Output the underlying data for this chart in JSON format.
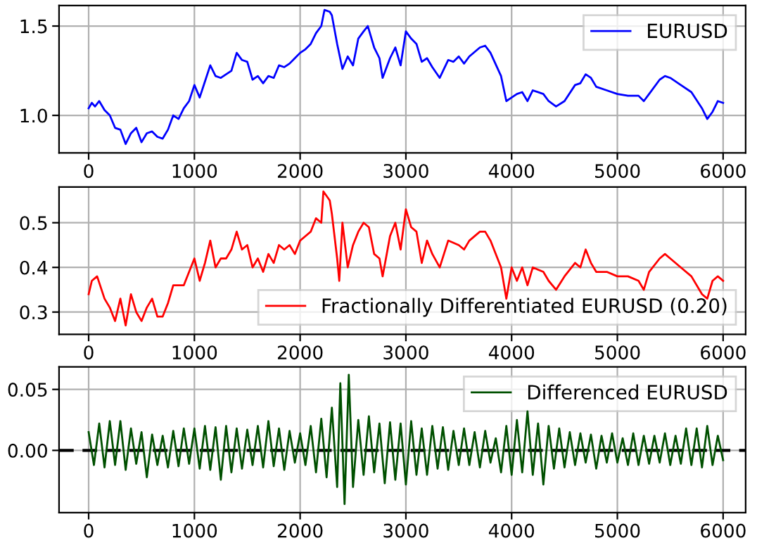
{
  "chart_data": [
    {
      "type": "line",
      "xlim": [
        -280,
        6213
      ],
      "xticks": [
        0,
        1000,
        2000,
        3000,
        4000,
        5000,
        6000
      ],
      "ylim": [
        0.79,
        1.615
      ],
      "yticks": [
        {
          "value": 1.0,
          "label": "1.0"
        },
        {
          "value": 1.5,
          "label": "1.5"
        }
      ],
      "grid": true,
      "legend": "top right",
      "series": [
        {
          "name": "EURUSD",
          "color": "#0000ff",
          "x": [
            0,
            30,
            60,
            100,
            150,
            200,
            250,
            300,
            350,
            400,
            450,
            500,
            550,
            600,
            650,
            700,
            750,
            800,
            850,
            900,
            950,
            1000,
            1050,
            1100,
            1150,
            1200,
            1250,
            1300,
            1350,
            1400,
            1450,
            1500,
            1550,
            1600,
            1650,
            1700,
            1750,
            1800,
            1850,
            1900,
            1950,
            2000,
            2050,
            2100,
            2150,
            2200,
            2230,
            2280,
            2300,
            2350,
            2400,
            2450,
            2500,
            2550,
            2600,
            2640,
            2700,
            2750,
            2780,
            2850,
            2900,
            2950,
            3000,
            3050,
            3100,
            3150,
            3200,
            3250,
            3320,
            3400,
            3450,
            3500,
            3550,
            3600,
            3700,
            3750,
            3800,
            3900,
            3950,
            4000,
            4050,
            4100,
            4150,
            4200,
            4300,
            4350,
            4420,
            4500,
            4600,
            4650,
            4700,
            4750,
            4800,
            4900,
            5000,
            5100,
            5200,
            5250,
            5300,
            5400,
            5450,
            5500,
            5600,
            5700,
            5800,
            5850,
            5900,
            5950,
            6000
          ],
          "values": [
            1.04,
            1.07,
            1.05,
            1.08,
            1.03,
            1.0,
            0.93,
            0.92,
            0.84,
            0.9,
            0.93,
            0.85,
            0.9,
            0.91,
            0.88,
            0.87,
            0.92,
            1.0,
            0.98,
            1.04,
            1.08,
            1.17,
            1.1,
            1.19,
            1.28,
            1.22,
            1.21,
            1.23,
            1.25,
            1.35,
            1.31,
            1.3,
            1.2,
            1.22,
            1.18,
            1.22,
            1.21,
            1.28,
            1.27,
            1.29,
            1.32,
            1.35,
            1.37,
            1.4,
            1.46,
            1.5,
            1.59,
            1.58,
            1.56,
            1.4,
            1.26,
            1.33,
            1.28,
            1.43,
            1.47,
            1.5,
            1.38,
            1.32,
            1.21,
            1.32,
            1.38,
            1.28,
            1.47,
            1.43,
            1.4,
            1.3,
            1.32,
            1.27,
            1.21,
            1.31,
            1.3,
            1.33,
            1.29,
            1.33,
            1.38,
            1.39,
            1.35,
            1.22,
            1.08,
            1.1,
            1.12,
            1.13,
            1.08,
            1.14,
            1.12,
            1.08,
            1.05,
            1.08,
            1.17,
            1.18,
            1.23,
            1.21,
            1.16,
            1.14,
            1.12,
            1.11,
            1.11,
            1.08,
            1.12,
            1.2,
            1.22,
            1.21,
            1.17,
            1.13,
            1.04,
            0.98,
            1.02,
            1.08,
            1.07
          ]
        }
      ]
    },
    {
      "type": "line",
      "xlim": [
        -280,
        6213
      ],
      "xticks": [
        0,
        1000,
        2000,
        3000,
        4000,
        5000,
        6000
      ],
      "ylim": [
        0.25,
        0.58
      ],
      "yticks": [
        {
          "value": 0.3,
          "label": "0.3"
        },
        {
          "value": 0.4,
          "label": "0.4"
        },
        {
          "value": 0.5,
          "label": "0.5"
        }
      ],
      "grid": true,
      "legend": "bottom right",
      "series": [
        {
          "name": "Fractionally Differentiated EURUSD (0.20)",
          "color": "#ff0000",
          "x": [
            0,
            30,
            80,
            150,
            200,
            250,
            300,
            350,
            400,
            450,
            500,
            550,
            600,
            650,
            700,
            750,
            800,
            900,
            950,
            1000,
            1050,
            1100,
            1150,
            1200,
            1250,
            1300,
            1350,
            1400,
            1450,
            1500,
            1550,
            1600,
            1650,
            1700,
            1750,
            1800,
            1850,
            1900,
            1950,
            2000,
            2050,
            2100,
            2150,
            2200,
            2220,
            2280,
            2300,
            2350,
            2370,
            2400,
            2450,
            2500,
            2550,
            2600,
            2650,
            2700,
            2750,
            2780,
            2850,
            2900,
            2950,
            3000,
            3050,
            3100,
            3150,
            3200,
            3250,
            3320,
            3400,
            3500,
            3550,
            3600,
            3700,
            3750,
            3800,
            3900,
            3950,
            4000,
            4050,
            4100,
            4150,
            4200,
            4300,
            4350,
            4420,
            4500,
            4600,
            4650,
            4700,
            4750,
            4800,
            4900,
            5000,
            5100,
            5200,
            5250,
            5300,
            5400,
            5450,
            5500,
            5600,
            5700,
            5800,
            5850,
            5900,
            5950,
            6000
          ],
          "values": [
            0.34,
            0.37,
            0.38,
            0.33,
            0.31,
            0.28,
            0.33,
            0.27,
            0.34,
            0.3,
            0.28,
            0.31,
            0.33,
            0.29,
            0.29,
            0.32,
            0.36,
            0.36,
            0.39,
            0.42,
            0.37,
            0.41,
            0.46,
            0.4,
            0.42,
            0.42,
            0.44,
            0.48,
            0.44,
            0.45,
            0.4,
            0.42,
            0.39,
            0.43,
            0.41,
            0.45,
            0.44,
            0.45,
            0.43,
            0.46,
            0.47,
            0.48,
            0.51,
            0.5,
            0.57,
            0.55,
            0.52,
            0.42,
            0.37,
            0.5,
            0.4,
            0.45,
            0.48,
            0.5,
            0.49,
            0.43,
            0.42,
            0.38,
            0.47,
            0.5,
            0.44,
            0.53,
            0.49,
            0.48,
            0.41,
            0.46,
            0.43,
            0.4,
            0.46,
            0.45,
            0.44,
            0.46,
            0.48,
            0.48,
            0.46,
            0.4,
            0.33,
            0.4,
            0.37,
            0.4,
            0.36,
            0.4,
            0.39,
            0.37,
            0.35,
            0.38,
            0.41,
            0.4,
            0.44,
            0.41,
            0.39,
            0.39,
            0.38,
            0.38,
            0.37,
            0.35,
            0.39,
            0.42,
            0.43,
            0.42,
            0.4,
            0.38,
            0.34,
            0.33,
            0.37,
            0.38,
            0.37
          ]
        }
      ]
    },
    {
      "type": "line",
      "xlim": [
        -280,
        6213
      ],
      "xticks": [
        0,
        1000,
        2000,
        3000,
        4000,
        5000,
        6000
      ],
      "ylim": [
        -0.051,
        0.0685
      ],
      "yticks": [
        {
          "value": 0.0,
          "label": "0.00"
        },
        {
          "value": 0.05,
          "label": "0.05"
        }
      ],
      "grid": true,
      "legend": "top right",
      "ref_lines": [
        {
          "axis": "y",
          "value": 0,
          "color": "#000000",
          "line_style": "dashed"
        }
      ],
      "series": [
        {
          "name": "Differenced EURUSD",
          "color": "#005000",
          "x": [
            0,
            50,
            100,
            150,
            200,
            250,
            300,
            350,
            400,
            450,
            500,
            550,
            600,
            650,
            700,
            750,
            800,
            850,
            900,
            950,
            1000,
            1050,
            1100,
            1150,
            1200,
            1250,
            1300,
            1350,
            1400,
            1450,
            1500,
            1550,
            1600,
            1650,
            1700,
            1750,
            1800,
            1850,
            1900,
            1950,
            2000,
            2050,
            2100,
            2150,
            2200,
            2250,
            2300,
            2350,
            2380,
            2420,
            2460,
            2500,
            2550,
            2600,
            2650,
            2700,
            2750,
            2800,
            2850,
            2900,
            2950,
            3000,
            3050,
            3100,
            3150,
            3200,
            3250,
            3300,
            3350,
            3400,
            3450,
            3500,
            3550,
            3600,
            3650,
            3700,
            3750,
            3800,
            3850,
            3900,
            3950,
            4000,
            4050,
            4100,
            4150,
            4200,
            4250,
            4300,
            4350,
            4400,
            4450,
            4500,
            4550,
            4600,
            4650,
            4700,
            4750,
            4800,
            4850,
            4900,
            4950,
            5000,
            5050,
            5100,
            5150,
            5200,
            5250,
            5300,
            5350,
            5400,
            5450,
            5500,
            5550,
            5600,
            5650,
            5700,
            5750,
            5800,
            5850,
            5900,
            5950,
            6000
          ],
          "values": [
            0.015,
            -0.012,
            0.022,
            -0.014,
            0.024,
            -0.012,
            0.024,
            -0.016,
            0.018,
            -0.011,
            0.015,
            -0.022,
            0.013,
            -0.012,
            0.012,
            -0.014,
            0.016,
            -0.013,
            0.018,
            -0.011,
            0.018,
            -0.015,
            0.02,
            -0.016,
            0.019,
            -0.024,
            0.02,
            -0.018,
            0.018,
            -0.015,
            0.017,
            -0.012,
            0.02,
            -0.014,
            0.024,
            -0.013,
            0.018,
            -0.016,
            0.016,
            -0.01,
            0.014,
            -0.012,
            0.02,
            -0.018,
            0.026,
            -0.022,
            0.035,
            -0.03,
            0.055,
            -0.044,
            0.062,
            -0.03,
            0.025,
            -0.02,
            0.028,
            -0.018,
            0.022,
            -0.027,
            0.023,
            -0.024,
            0.022,
            -0.028,
            0.024,
            -0.02,
            0.018,
            -0.02,
            0.02,
            -0.015,
            0.019,
            -0.016,
            0.016,
            -0.012,
            0.018,
            -0.012,
            0.015,
            -0.014,
            0.016,
            -0.01,
            0.01,
            -0.018,
            0.02,
            -0.02,
            0.025,
            -0.018,
            0.032,
            -0.02,
            0.022,
            -0.028,
            0.02,
            -0.015,
            0.018,
            -0.014,
            0.015,
            -0.012,
            0.014,
            -0.01,
            0.013,
            -0.015,
            0.012,
            -0.01,
            0.014,
            -0.01,
            0.01,
            -0.012,
            0.014,
            -0.012,
            0.012,
            -0.011,
            0.012,
            -0.01,
            0.014,
            -0.012,
            0.012,
            -0.011,
            0.018,
            -0.012,
            0.018,
            -0.014,
            0.02,
            -0.012,
            0.012,
            -0.008
          ]
        }
      ]
    }
  ]
}
